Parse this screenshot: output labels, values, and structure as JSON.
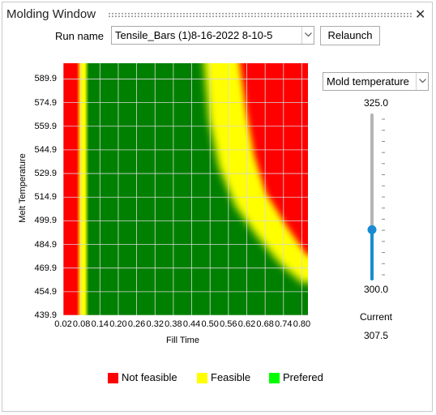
{
  "window": {
    "title": "Molding Window",
    "close_glyph": "✕"
  },
  "run": {
    "label": "Run name",
    "selected": "Tensile_Bars (1)8-16-2022 8-10-5"
  },
  "relaunch_label": "Relaunch",
  "chart_data": {
    "type": "heatmap",
    "xlabel": "Fill Time",
    "ylabel": "Melt Temperature",
    "x_ticks": [
      "0.02",
      "0.08",
      "0.14",
      "0.20",
      "0.26",
      "0.32",
      "0.38",
      "0.44",
      "0.50",
      "0.56",
      "0.62",
      "0.68",
      "0.74",
      "0.80"
    ],
    "y_ticks": [
      "589.9",
      "574.9",
      "559.9",
      "544.9",
      "529.9",
      "514.9",
      "499.9",
      "484.9",
      "469.9",
      "454.9",
      "439.9"
    ],
    "xlim": [
      0.02,
      0.82
    ],
    "ylim": [
      439.9,
      599.9
    ],
    "grid": true,
    "legend_position": "bottom",
    "regions": [
      {
        "class": "Not feasible",
        "description": "fill time below ~0.07 and upper-right corner (high fill time, high melt temperature)"
      },
      {
        "class": "Feasible",
        "description": "narrow band near fill time 0.08 and diagonal band from (0.50, 599.9) to (0.82, 464.9)"
      },
      {
        "class": "Prefered",
        "description": "bulk region from fill time ~0.09 to ~0.50"
      }
    ],
    "legend": [
      {
        "name": "Not feasible",
        "color": "#ff0000"
      },
      {
        "name": "Feasible",
        "color": "#ffff00"
      },
      {
        "name": "Prefered",
        "color": "#00ff00"
      }
    ],
    "colors": {
      "not_feasible": "#ff0000",
      "feasible": "#ffff00",
      "prefered_fill": "#008000",
      "grid": "#d9d9d9"
    }
  },
  "param": {
    "selected": "Mold temperature",
    "max": "325.0",
    "min": "300.0",
    "current_label": "Current",
    "current": "307.5",
    "current_value": 307.5,
    "tick_count": 15,
    "accent": "#1a8ad4"
  }
}
